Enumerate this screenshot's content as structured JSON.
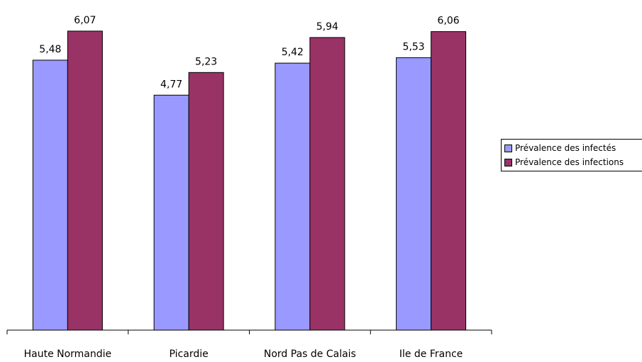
{
  "chart_data": {
    "type": "bar",
    "categories": [
      "Haute Normandie",
      "Picardie",
      "Nord Pas de Calais",
      "Ile de France"
    ],
    "series": [
      {
        "name": "Prévalence des infectés",
        "values": [
          5.48,
          4.77,
          5.42,
          5.53
        ],
        "value_labels": [
          "5,48",
          "4,77",
          "5,42",
          "5,53"
        ],
        "color": "#9999ff"
      },
      {
        "name": "Prévalence des infections",
        "values": [
          6.07,
          5.23,
          5.94,
          6.06
        ],
        "value_labels": [
          "6,07",
          "5,23",
          "5,94",
          "6,06"
        ],
        "color": "#993366"
      }
    ],
    "ylim": [
      0,
      6.5
    ],
    "grid": false,
    "legend_position": "right"
  }
}
